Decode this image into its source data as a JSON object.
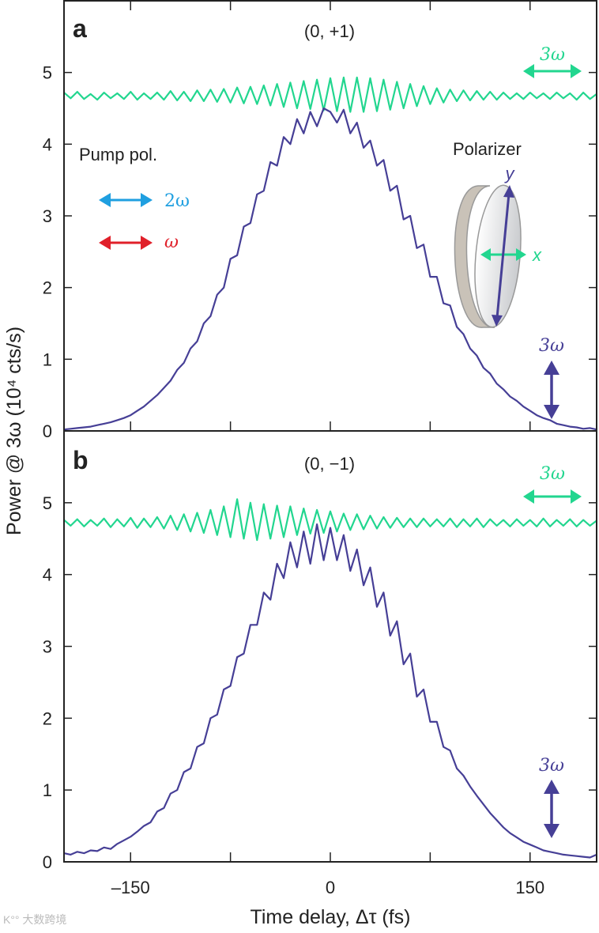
{
  "colors": {
    "third_harmonic": "#22d68f",
    "signal": "#463f96",
    "second_harmonic": "#1f9fe0",
    "fundamental": "#e0202a",
    "axis": "#222222"
  },
  "watermark": "大数跨境",
  "chart_data": [
    {
      "type": "line",
      "panel_label": "a",
      "title": "(0, +1)",
      "xlabel": "Time delay, Δτ (fs)",
      "ylabel": "Power @ 3ω (10⁴ cts/s)",
      "xlim": [
        -200,
        200
      ],
      "ylim": [
        0,
        6
      ],
      "xticks": [
        -150,
        -75,
        0,
        75,
        150
      ],
      "xtick_labels": [
        "–150",
        "",
        "0",
        "",
        "150"
      ],
      "yticks": [
        0,
        1,
        2,
        3,
        4,
        5
      ],
      "ytick_labels": [
        "0",
        "1",
        "2",
        "3",
        "4",
        "5"
      ],
      "grid": false,
      "x": [
        -200,
        -195,
        -190,
        -185,
        -180,
        -175,
        -170,
        -165,
        -160,
        -155,
        -150,
        -145,
        -140,
        -135,
        -130,
        -125,
        -120,
        -115,
        -110,
        -105,
        -100,
        -95,
        -90,
        -85,
        -80,
        -75,
        -70,
        -65,
        -60,
        -55,
        -50,
        -45,
        -40,
        -35,
        -30,
        -25,
        -20,
        -15,
        -10,
        -5,
        0,
        5,
        10,
        15,
        20,
        25,
        30,
        35,
        40,
        45,
        50,
        55,
        60,
        65,
        70,
        75,
        80,
        85,
        90,
        95,
        100,
        105,
        110,
        115,
        120,
        125,
        130,
        135,
        140,
        145,
        150,
        155,
        160,
        165,
        170,
        175,
        180,
        185,
        190,
        195,
        200
      ],
      "series": [
        {
          "key": "x-polarized 3ω",
          "color": "#22d68f",
          "values": [
            4.72,
            4.64,
            4.73,
            4.63,
            4.7,
            4.62,
            4.72,
            4.64,
            4.71,
            4.63,
            4.73,
            4.62,
            4.71,
            4.63,
            4.72,
            4.62,
            4.74,
            4.61,
            4.73,
            4.6,
            4.75,
            4.6,
            4.76,
            4.59,
            4.77,
            4.58,
            4.79,
            4.57,
            4.8,
            4.56,
            4.82,
            4.54,
            4.84,
            4.52,
            4.86,
            4.5,
            4.88,
            4.49,
            4.9,
            4.47,
            4.92,
            4.46,
            4.93,
            4.45,
            4.93,
            4.45,
            4.92,
            4.46,
            4.9,
            4.48,
            4.87,
            4.5,
            4.84,
            4.53,
            4.81,
            4.56,
            4.78,
            4.58,
            4.76,
            4.6,
            4.75,
            4.61,
            4.74,
            4.62,
            4.73,
            4.62,
            4.72,
            4.63,
            4.71,
            4.63,
            4.72,
            4.64,
            4.71,
            4.63,
            4.72,
            4.64,
            4.71,
            4.62,
            4.72,
            4.63,
            4.7
          ]
        },
        {
          "key": "y-polarized 3ω",
          "color": "#463f96",
          "values": [
            0.02,
            0.03,
            0.04,
            0.05,
            0.06,
            0.08,
            0.1,
            0.12,
            0.15,
            0.18,
            0.22,
            0.28,
            0.34,
            0.42,
            0.5,
            0.6,
            0.7,
            0.85,
            0.95,
            1.15,
            1.25,
            1.5,
            1.6,
            1.9,
            2.0,
            2.4,
            2.45,
            2.85,
            2.9,
            3.3,
            3.35,
            3.75,
            3.7,
            4.1,
            4.0,
            4.35,
            4.15,
            4.45,
            4.25,
            4.5,
            4.45,
            4.3,
            4.48,
            4.15,
            4.3,
            3.95,
            4.05,
            3.7,
            3.78,
            3.35,
            3.42,
            2.95,
            3.0,
            2.55,
            2.6,
            2.15,
            2.15,
            1.78,
            1.75,
            1.45,
            1.35,
            1.15,
            1.05,
            0.88,
            0.8,
            0.66,
            0.58,
            0.48,
            0.42,
            0.34,
            0.28,
            0.22,
            0.18,
            0.15,
            0.1,
            0.08,
            0.06,
            0.05,
            0.03,
            0.04,
            0.02
          ]
        }
      ],
      "annotations": {
        "pump_pol": "Pump pol.",
        "second_harmonic": "2ω",
        "fundamental": "ω",
        "polarizer": "Polarizer",
        "axis_y": "y",
        "axis_x": "x",
        "green_3w": "3ω",
        "purple_3w": "3ω"
      }
    },
    {
      "type": "line",
      "panel_label": "b",
      "title": "(0, −1)",
      "xlabel": "Time delay, Δτ (fs)",
      "ylabel": "Power @ 3ω (10⁴ cts/s)",
      "xlim": [
        -200,
        200
      ],
      "ylim": [
        0,
        6
      ],
      "xticks": [
        -150,
        -75,
        0,
        75,
        150
      ],
      "xtick_labels": [
        "–150",
        "",
        "0",
        "",
        "150"
      ],
      "yticks": [
        0,
        1,
        2,
        3,
        4,
        5
      ],
      "ytick_labels": [
        "0",
        "1",
        "2",
        "3",
        "4",
        "5"
      ],
      "grid": false,
      "x": [
        -200,
        -195,
        -190,
        -185,
        -180,
        -175,
        -170,
        -165,
        -160,
        -155,
        -150,
        -145,
        -140,
        -135,
        -130,
        -125,
        -120,
        -115,
        -110,
        -105,
        -100,
        -95,
        -90,
        -85,
        -80,
        -75,
        -70,
        -65,
        -60,
        -55,
        -50,
        -45,
        -40,
        -35,
        -30,
        -25,
        -20,
        -15,
        -10,
        -5,
        0,
        5,
        10,
        15,
        20,
        25,
        30,
        35,
        40,
        45,
        50,
        55,
        60,
        65,
        70,
        75,
        80,
        85,
        90,
        95,
        100,
        105,
        110,
        115,
        120,
        125,
        130,
        135,
        140,
        145,
        150,
        155,
        160,
        165,
        170,
        175,
        180,
        185,
        190,
        195,
        200
      ],
      "series": [
        {
          "key": "x-polarized 3ω",
          "color": "#22d68f",
          "values": [
            4.76,
            4.68,
            4.77,
            4.67,
            4.76,
            4.68,
            4.78,
            4.66,
            4.77,
            4.67,
            4.79,
            4.65,
            4.78,
            4.66,
            4.8,
            4.64,
            4.82,
            4.62,
            4.84,
            4.6,
            4.86,
            4.58,
            4.9,
            4.55,
            4.95,
            4.52,
            5.05,
            4.5,
            5.0,
            4.48,
            4.98,
            4.5,
            4.96,
            4.52,
            4.95,
            4.55,
            4.92,
            4.57,
            4.9,
            4.58,
            4.88,
            4.6,
            4.85,
            4.62,
            4.84,
            4.63,
            4.82,
            4.64,
            4.8,
            4.65,
            4.79,
            4.66,
            4.78,
            4.66,
            4.78,
            4.67,
            4.77,
            4.67,
            4.78,
            4.66,
            4.77,
            4.67,
            4.78,
            4.66,
            4.77,
            4.68,
            4.76,
            4.67,
            4.77,
            4.68,
            4.76,
            4.67,
            4.78,
            4.67,
            4.76,
            4.68,
            4.77,
            4.67,
            4.76,
            4.68,
            4.75
          ]
        },
        {
          "key": "y-polarized 3ω",
          "color": "#463f96",
          "values": [
            0.12,
            0.1,
            0.14,
            0.12,
            0.16,
            0.15,
            0.2,
            0.18,
            0.25,
            0.3,
            0.35,
            0.42,
            0.5,
            0.55,
            0.7,
            0.75,
            0.95,
            1.0,
            1.25,
            1.3,
            1.6,
            1.65,
            2.0,
            2.05,
            2.4,
            2.45,
            2.85,
            2.9,
            3.3,
            3.3,
            3.75,
            3.65,
            4.15,
            3.95,
            4.45,
            4.1,
            4.6,
            4.15,
            4.7,
            4.2,
            4.65,
            4.2,
            4.55,
            4.05,
            4.35,
            3.85,
            4.1,
            3.55,
            3.75,
            3.15,
            3.35,
            2.75,
            2.9,
            2.3,
            2.4,
            1.95,
            1.95,
            1.6,
            1.55,
            1.3,
            1.2,
            1.05,
            0.92,
            0.8,
            0.68,
            0.58,
            0.48,
            0.4,
            0.34,
            0.28,
            0.24,
            0.2,
            0.16,
            0.14,
            0.12,
            0.1,
            0.09,
            0.08,
            0.07,
            0.06,
            0.1
          ]
        }
      ],
      "annotations": {
        "green_3w": "3ω",
        "purple_3w": "3ω"
      }
    }
  ]
}
